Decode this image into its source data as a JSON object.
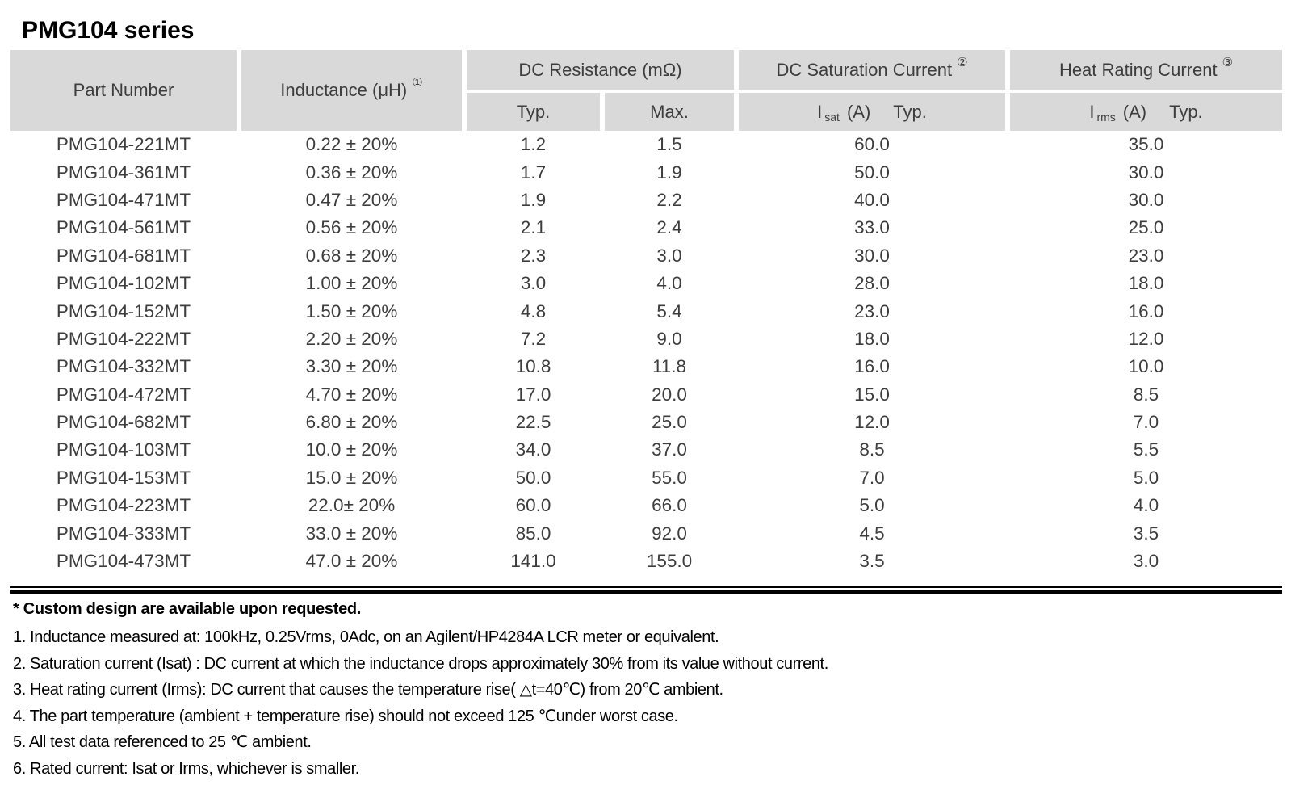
{
  "title": "PMG104 series",
  "colors": {
    "header_bg": "#d9d9d9",
    "table_text": "#3d3d3d",
    "notes_text": "#000000"
  },
  "table": {
    "header": {
      "part_number": "Part Number",
      "inductance": "Inductance (μH)",
      "inductance_note": "①",
      "dc_resistance": "DC Resistance (mΩ)",
      "dcr_typ": "Typ.",
      "dcr_max": "Max.",
      "dc_saturation": "DC Saturation Current",
      "dc_saturation_note": "②",
      "isat_symbol": "I",
      "isat_sub": "sat",
      "isat_unit": "(A)",
      "isat_typ": "Typ.",
      "heat_rating": "Heat Rating Current",
      "heat_rating_note": "③",
      "irms_symbol": "I",
      "irms_sub": "rms",
      "irms_unit": "(A)",
      "irms_typ": "Typ."
    },
    "rows": [
      {
        "part": "PMG104-221MT",
        "inductance": "0.22 ± 20%",
        "r_typ": "1.2",
        "r_max": "1.5",
        "i_sat": "60.0",
        "i_rms": "35.0"
      },
      {
        "part": "PMG104-361MT",
        "inductance": "0.36 ± 20%",
        "r_typ": "1.7",
        "r_max": "1.9",
        "i_sat": "50.0",
        "i_rms": "30.0"
      },
      {
        "part": "PMG104-471MT",
        "inductance": "0.47 ± 20%",
        "r_typ": "1.9",
        "r_max": "2.2",
        "i_sat": "40.0",
        "i_rms": "30.0"
      },
      {
        "part": "PMG104-561MT",
        "inductance": "0.56 ± 20%",
        "r_typ": "2.1",
        "r_max": "2.4",
        "i_sat": "33.0",
        "i_rms": "25.0"
      },
      {
        "part": "PMG104-681MT",
        "inductance": "0.68 ± 20%",
        "r_typ": "2.3",
        "r_max": "3.0",
        "i_sat": "30.0",
        "i_rms": "23.0"
      },
      {
        "part": "PMG104-102MT",
        "inductance": "1.00 ± 20%",
        "r_typ": "3.0",
        "r_max": "4.0",
        "i_sat": "28.0",
        "i_rms": "18.0"
      },
      {
        "part": "PMG104-152MT",
        "inductance": "1.50 ± 20%",
        "r_typ": "4.8",
        "r_max": "5.4",
        "i_sat": "23.0",
        "i_rms": "16.0"
      },
      {
        "part": "PMG104-222MT",
        "inductance": "2.20 ± 20%",
        "r_typ": "7.2",
        "r_max": "9.0",
        "i_sat": "18.0",
        "i_rms": "12.0"
      },
      {
        "part": "PMG104-332MT",
        "inductance": "3.30 ± 20%",
        "r_typ": "10.8",
        "r_max": "11.8",
        "i_sat": "16.0",
        "i_rms": "10.0"
      },
      {
        "part": "PMG104-472MT",
        "inductance": "4.70 ± 20%",
        "r_typ": "17.0",
        "r_max": "20.0",
        "i_sat": "15.0",
        "i_rms": "8.5"
      },
      {
        "part": "PMG104-682MT",
        "inductance": "6.80 ± 20%",
        "r_typ": "22.5",
        "r_max": "25.0",
        "i_sat": "12.0",
        "i_rms": "7.0"
      },
      {
        "part": "PMG104-103MT",
        "inductance": "10.0 ± 20%",
        "r_typ": "34.0",
        "r_max": "37.0",
        "i_sat": "8.5",
        "i_rms": "5.5"
      },
      {
        "part": "PMG104-153MT",
        "inductance": "15.0 ± 20%",
        "r_typ": "50.0",
        "r_max": "55.0",
        "i_sat": "7.0",
        "i_rms": "5.0"
      },
      {
        "part": "PMG104-223MT",
        "inductance": "22.0± 20%",
        "r_typ": "60.0",
        "r_max": "66.0",
        "i_sat": "5.0",
        "i_rms": "4.0"
      },
      {
        "part": "PMG104-333MT",
        "inductance": "33.0 ± 20%",
        "r_typ": "85.0",
        "r_max": "92.0",
        "i_sat": "4.5",
        "i_rms": "3.5"
      },
      {
        "part": "PMG104-473MT",
        "inductance": "47.0 ± 20%",
        "r_typ": "141.0",
        "r_max": "155.0",
        "i_sat": "3.5",
        "i_rms": "3.0"
      }
    ]
  },
  "footer": {
    "custom_note": "* Custom design are available upon requested.",
    "notes": [
      "1. Inductance measured at: 100kHz, 0.25Vrms, 0Adc, on an Agilent/HP4284A LCR meter or equivalent.",
      "2. Saturation current (Isat) : DC current at which the inductance drops approximately 30% from its value without current.",
      "3. Heat rating current (Irms): DC current that causes the temperature rise( △t=40℃) from 20℃ ambient.",
      "4. The part temperature (ambient + temperature rise) should not exceed 125 ℃under worst case.",
      "5. All test data referenced to 25 ℃ ambient.",
      "6. Rated current: Isat or Irms, whichever is smaller."
    ]
  }
}
